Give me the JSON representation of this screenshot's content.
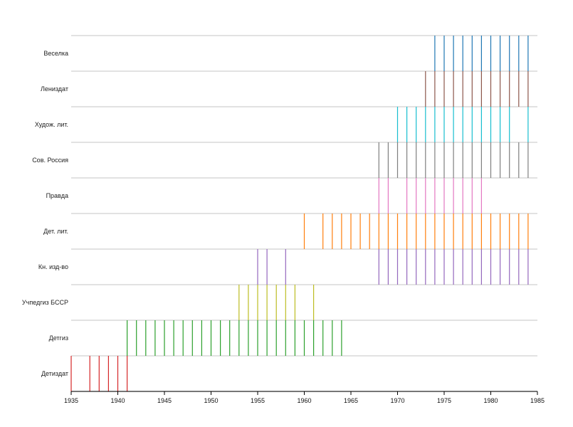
{
  "chart_data": {
    "type": "timeline",
    "x_range": [
      1935,
      1985
    ],
    "x_ticks": [
      1935,
      1940,
      1945,
      1950,
      1955,
      1960,
      1965,
      1970,
      1975,
      1980,
      1985
    ],
    "grid": "horizontal-row-separators",
    "rows": [
      {
        "label": "Веселка",
        "color": "#1f77b4",
        "years": [
          1974,
          1975,
          1976,
          1977,
          1978,
          1979,
          1980,
          1981,
          1982,
          1983,
          1984
        ]
      },
      {
        "label": "Лениздат",
        "color": "#8c564b",
        "years": [
          1973,
          1974,
          1975,
          1976,
          1977,
          1978,
          1979,
          1980,
          1981,
          1982,
          1983,
          1984
        ]
      },
      {
        "label": "Худож. лит.",
        "color": "#17becf",
        "years": [
          1970,
          1971,
          1972,
          1973,
          1974,
          1975,
          1976,
          1977,
          1978,
          1979,
          1980,
          1981,
          1982,
          1984
        ]
      },
      {
        "label": "Сов. Россия",
        "color": "#7f7f7f",
        "years": [
          1968,
          1969,
          1970,
          1971,
          1972,
          1973,
          1974,
          1975,
          1976,
          1977,
          1978,
          1979,
          1980,
          1981,
          1982,
          1983,
          1984
        ]
      },
      {
        "label": "Правда",
        "color": "#e377c2",
        "years": [
          1968,
          1969,
          1971,
          1972,
          1973,
          1974,
          1975,
          1976,
          1977,
          1978,
          1979
        ]
      },
      {
        "label": "Дет. лит.",
        "color": "#ff7f0e",
        "years": [
          1960,
          1962,
          1963,
          1964,
          1965,
          1966,
          1967,
          1968,
          1969,
          1970,
          1971,
          1972,
          1973,
          1974,
          1975,
          1976,
          1977,
          1978,
          1979,
          1980,
          1981,
          1982,
          1983,
          1984
        ]
      },
      {
        "label": "Кн. изд-во",
        "color": "#9467bd",
        "years": [
          1955,
          1956,
          1958,
          1968,
          1969,
          1970,
          1971,
          1972,
          1973,
          1974,
          1975,
          1976,
          1977,
          1978,
          1979,
          1980,
          1981,
          1982,
          1983,
          1984
        ]
      },
      {
        "label": "Учпедгиз БССР",
        "color": "#bcbd22",
        "years": [
          1953,
          1954,
          1955,
          1956,
          1957,
          1958,
          1959,
          1961
        ]
      },
      {
        "label": "Детгиз",
        "color": "#2ca02c",
        "years": [
          1941,
          1942,
          1943,
          1944,
          1945,
          1946,
          1947,
          1948,
          1949,
          1950,
          1951,
          1952,
          1953,
          1954,
          1955,
          1956,
          1957,
          1958,
          1959,
          1960,
          1961,
          1962,
          1963,
          1964
        ]
      },
      {
        "label": "Детиздат",
        "color": "#d62728",
        "years": [
          1935,
          1937,
          1938,
          1939,
          1940,
          1941
        ]
      }
    ]
  }
}
